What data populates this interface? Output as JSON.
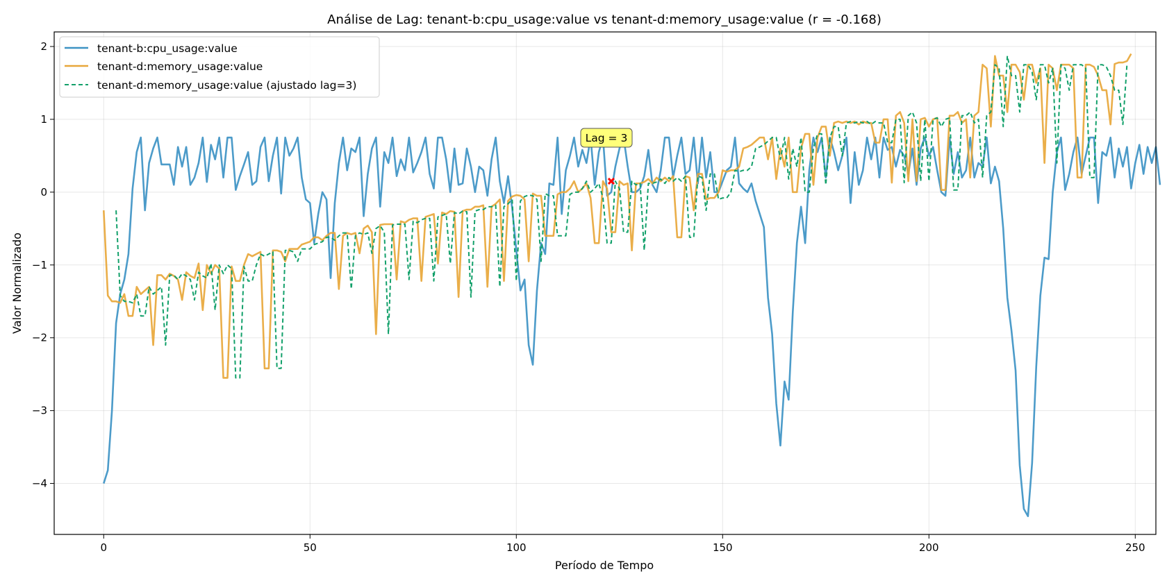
{
  "chart_data": {
    "type": "line",
    "title": "Análise de Lag: tenant-b:cpu_usage:value vs tenant-d:memory_usage:value (r = -0.168)",
    "xlabel": "Período de Tempo",
    "ylabel": "Valor Normalizado",
    "xlim": [
      -12,
      255
    ],
    "ylim": [
      -4.7,
      2.2
    ],
    "xticks": [
      0,
      50,
      100,
      150,
      200,
      250
    ],
    "yticks": [
      2,
      1,
      0,
      -1,
      -2,
      -3,
      -4
    ],
    "ytick_labels": [
      "2",
      "1",
      "0",
      "−1",
      "−2",
      "−3",
      "−4"
    ],
    "grid": true,
    "legend_position": "upper-left",
    "annotation": {
      "text": "Lag = 3",
      "x": 123,
      "y": 0.15
    },
    "colors": {
      "series_a": "#3d93c4",
      "series_b": "#e8a73a",
      "series_c": "#12a06a",
      "marker": "#ff0000",
      "annotation_bg": "#ffff7a"
    },
    "series": [
      {
        "name": "tenant-b:cpu_usage:value",
        "style": "solid",
        "x_start": 0,
        "values": [
          -4.0,
          -3.82,
          -3.0,
          -1.8,
          -1.4,
          -1.2,
          -0.85,
          0.05,
          0.55,
          0.75,
          -0.25,
          0.4,
          0.6,
          0.75,
          0.38,
          0.38,
          0.38,
          0.1,
          0.62,
          0.35,
          0.62,
          0.1,
          0.2,
          0.4,
          0.75,
          0.14,
          0.65,
          0.45,
          0.75,
          0.2,
          0.75,
          0.75,
          0.03,
          0.22,
          0.38,
          0.55,
          0.1,
          0.15,
          0.62,
          0.75,
          0.15,
          0.5,
          0.75,
          -0.02,
          0.75,
          0.5,
          0.6,
          0.75,
          0.2,
          -0.1,
          -0.15,
          -0.7,
          -0.3,
          0.0,
          -0.1,
          -1.18,
          -0.15,
          0.4,
          0.75,
          0.3,
          0.6,
          0.55,
          0.75,
          -0.33,
          0.25,
          0.6,
          0.75,
          -0.2,
          0.55,
          0.4,
          0.75,
          0.22,
          0.45,
          0.3,
          0.75,
          0.27,
          0.4,
          0.55,
          0.75,
          0.25,
          0.05,
          0.75,
          0.75,
          0.45,
          0.0,
          0.6,
          0.1,
          0.12,
          0.6,
          0.35,
          0.0,
          0.35,
          0.3,
          -0.05,
          0.45,
          0.75,
          0.15,
          -0.15,
          0.22,
          -0.22,
          -0.8,
          -1.35,
          -1.2,
          -2.1,
          -2.37,
          -1.35,
          -0.7,
          -0.85,
          0.12,
          0.1,
          0.75,
          -0.3,
          0.3,
          0.5,
          0.75,
          0.35,
          0.58,
          0.4,
          0.75,
          0.1,
          0.55,
          0.75,
          -0.05,
          0.0,
          0.35,
          0.6,
          0.75,
          0.35,
          0.0,
          0.0,
          0.05,
          0.22,
          0.58,
          0.1,
          0.0,
          0.3,
          0.75,
          0.75,
          0.2,
          0.5,
          0.75,
          0.25,
          0.3,
          0.75,
          0.12,
          0.75,
          0.2,
          0.55,
          0.0,
          0.0,
          0.15,
          0.3,
          0.35,
          0.75,
          0.12,
          0.05,
          0.0,
          0.12,
          -0.12,
          -0.3,
          -0.48,
          -1.45,
          -1.95,
          -2.9,
          -3.48,
          -2.6,
          -2.85,
          -1.65,
          -0.7,
          -0.2,
          -0.7,
          0.3,
          0.75,
          0.55,
          0.75,
          0.2,
          0.75,
          0.55,
          0.3,
          0.5,
          0.75,
          -0.15,
          0.55,
          0.1,
          0.3,
          0.75,
          0.45,
          0.75,
          0.2,
          0.75,
          0.58,
          0.62,
          0.35,
          0.58,
          0.5,
          0.25,
          0.6,
          0.1,
          0.6,
          0.75,
          0.5,
          0.62,
          0.3,
          0.0,
          -0.05,
          0.75,
          0.25,
          0.55,
          0.2,
          0.3,
          0.75,
          0.2,
          0.4,
          0.35,
          0.75,
          0.12,
          0.35,
          0.15,
          -0.5,
          -1.45,
          -1.9,
          -2.45,
          -3.75,
          -4.35,
          -4.45,
          -3.72,
          -2.4,
          -1.42,
          -0.9,
          -0.92,
          0.0,
          0.55,
          0.75,
          0.03,
          0.25,
          0.55,
          0.75,
          0.25,
          0.5,
          0.75,
          0.75,
          -0.15,
          0.55,
          0.5,
          0.75,
          0.2,
          0.6,
          0.35,
          0.62,
          0.05,
          0.4,
          0.65,
          0.25,
          0.62,
          0.4,
          0.62,
          0.1
        ]
      },
      {
        "name": "tenant-d:memory_usage:value",
        "style": "solid",
        "x_start": 0,
        "values": [
          -0.25,
          -1.42,
          -1.5,
          -1.5,
          -1.52,
          -1.4,
          -1.7,
          -1.7,
          -1.3,
          -1.4,
          -1.35,
          -1.3,
          -2.1,
          -1.14,
          -1.14,
          -1.2,
          -1.12,
          -1.15,
          -1.2,
          -1.48,
          -1.1,
          -1.15,
          -1.18,
          -0.98,
          -1.62,
          -1.0,
          -1.12,
          -1.0,
          -1.05,
          -2.55,
          -2.55,
          -1.02,
          -1.22,
          -1.22,
          -1.0,
          -0.85,
          -0.88,
          -0.85,
          -0.82,
          -2.42,
          -2.42,
          -0.8,
          -0.8,
          -0.82,
          -0.95,
          -0.78,
          -0.78,
          -0.78,
          -0.72,
          -0.7,
          -0.68,
          -0.62,
          -0.62,
          -0.66,
          -0.6,
          -0.56,
          -0.56,
          -1.33,
          -0.6,
          -0.56,
          -0.58,
          -0.56,
          -0.84,
          -0.5,
          -0.46,
          -0.55,
          -1.95,
          -0.45,
          -0.44,
          -0.44,
          -0.44,
          -1.2,
          -0.4,
          -0.42,
          -0.38,
          -0.36,
          -0.36,
          -1.22,
          -0.34,
          -0.32,
          -0.3,
          -0.98,
          -0.28,
          -0.3,
          -0.26,
          -0.27,
          -1.44,
          -0.26,
          -0.24,
          -0.24,
          -0.2,
          -0.2,
          -0.18,
          -1.3,
          -0.2,
          -0.16,
          -0.1,
          -1.22,
          -0.12,
          -0.06,
          -0.04,
          -0.05,
          -0.1,
          -0.95,
          -0.02,
          -0.05,
          -0.05,
          -0.6,
          -0.6,
          -0.6,
          -0.03,
          0.0,
          0.0,
          0.05,
          0.15,
          0.0,
          0.05,
          0.12,
          -0.08,
          -0.7,
          -0.7,
          0.15,
          0.05,
          -0.55,
          -0.55,
          0.15,
          0.1,
          0.12,
          -0.8,
          0.12,
          0.12,
          0.14,
          0.18,
          0.12,
          0.2,
          0.15,
          0.2,
          0.15,
          0.22,
          -0.62,
          -0.62,
          0.22,
          0.2,
          -0.25,
          0.25,
          0.25,
          -0.1,
          -0.08,
          -0.08,
          0.0,
          0.3,
          0.28,
          0.3,
          0.3,
          0.35,
          0.6,
          0.62,
          0.65,
          0.7,
          0.75,
          0.75,
          0.45,
          0.75,
          0.18,
          0.6,
          0.35,
          0.75,
          0.0,
          0.0,
          0.6,
          0.8,
          0.8,
          0.1,
          0.75,
          0.9,
          0.9,
          0.5,
          0.95,
          0.97,
          0.95,
          0.97,
          0.95,
          0.97,
          0.93,
          0.97,
          0.95,
          0.95,
          0.68,
          0.68,
          1.0,
          1.0,
          0.13,
          1.05,
          1.1,
          0.95,
          0.15,
          1.0,
          0.15,
          1.0,
          1.02,
          0.9,
          1.0,
          1.02,
          0.03,
          0.03,
          1.05,
          1.05,
          1.1,
          0.95,
          1.0,
          0.2,
          1.05,
          1.1,
          1.75,
          1.7,
          0.9,
          1.87,
          1.6,
          1.6,
          1.1,
          1.75,
          1.75,
          1.65,
          1.27,
          1.75,
          1.75,
          1.5,
          1.7,
          0.4,
          1.75,
          1.7,
          1.4,
          1.75,
          1.75,
          1.75,
          1.7,
          0.2,
          0.2,
          1.75,
          1.75,
          1.72,
          1.6,
          1.4,
          1.4,
          0.93,
          1.76,
          1.78,
          1.78,
          1.8,
          1.9
        ]
      },
      {
        "name": "tenant-d:memory_usage:value (ajustado lag=3)",
        "style": "dashed",
        "x_start": 3,
        "values": [
          -0.25,
          -1.42,
          -1.5,
          -1.5,
          -1.52,
          -1.4,
          -1.7,
          -1.7,
          -1.3,
          -1.4,
          -1.35,
          -1.3,
          -2.1,
          -1.14,
          -1.14,
          -1.2,
          -1.12,
          -1.15,
          -1.2,
          -1.48,
          -1.1,
          -1.15,
          -1.18,
          -0.98,
          -1.62,
          -1.0,
          -1.12,
          -1.0,
          -1.05,
          -2.55,
          -2.55,
          -1.02,
          -1.22,
          -1.22,
          -1.0,
          -0.85,
          -0.88,
          -0.85,
          -0.82,
          -2.42,
          -2.42,
          -0.8,
          -0.8,
          -0.82,
          -0.95,
          -0.78,
          -0.78,
          -0.78,
          -0.72,
          -0.7,
          -0.68,
          -0.62,
          -0.62,
          -0.66,
          -0.6,
          -0.56,
          -0.56,
          -1.33,
          -0.6,
          -0.56,
          -0.58,
          -0.56,
          -0.84,
          -0.5,
          -0.46,
          -0.55,
          -1.95,
          -0.45,
          -0.44,
          -0.44,
          -0.44,
          -1.2,
          -0.4,
          -0.42,
          -0.38,
          -0.36,
          -0.36,
          -1.22,
          -0.34,
          -0.32,
          -0.3,
          -0.98,
          -0.28,
          -0.3,
          -0.26,
          -0.27,
          -1.44,
          -0.26,
          -0.24,
          -0.24,
          -0.2,
          -0.2,
          -0.18,
          -1.3,
          -0.2,
          -0.16,
          -0.1,
          -1.22,
          -0.12,
          -0.06,
          -0.04,
          -0.05,
          -0.1,
          -0.95,
          -0.02,
          -0.05,
          -0.05,
          -0.6,
          -0.6,
          -0.6,
          -0.03,
          0.0,
          0.0,
          0.05,
          0.15,
          0.0,
          0.05,
          0.12,
          -0.08,
          -0.7,
          -0.7,
          0.15,
          0.05,
          -0.55,
          -0.55,
          0.15,
          0.1,
          0.12,
          -0.8,
          0.12,
          0.12,
          0.14,
          0.18,
          0.12,
          0.2,
          0.15,
          0.2,
          0.15,
          0.22,
          -0.62,
          -0.62,
          0.22,
          0.2,
          -0.25,
          0.25,
          0.25,
          -0.1,
          -0.08,
          -0.08,
          0.0,
          0.3,
          0.28,
          0.3,
          0.3,
          0.35,
          0.6,
          0.62,
          0.65,
          0.7,
          0.75,
          0.75,
          0.45,
          0.75,
          0.18,
          0.6,
          0.35,
          0.75,
          0.0,
          0.0,
          0.6,
          0.8,
          0.8,
          0.1,
          0.75,
          0.9,
          0.9,
          0.5,
          0.95,
          0.97,
          0.95,
          0.97,
          0.95,
          0.97,
          0.93,
          0.97,
          0.95,
          0.95,
          0.68,
          0.68,
          1.0,
          1.0,
          0.13,
          1.05,
          1.1,
          0.95,
          0.15,
          1.0,
          0.15,
          1.0,
          1.02,
          0.9,
          1.0,
          1.02,
          0.03,
          0.03,
          1.05,
          1.05,
          1.1,
          0.95,
          1.0,
          0.2,
          1.05,
          1.1,
          1.75,
          1.7,
          0.9,
          1.87,
          1.6,
          1.6,
          1.1,
          1.75,
          1.75,
          1.65,
          1.27,
          1.75,
          1.75,
          1.5,
          1.7,
          0.4,
          1.75,
          1.7,
          1.4,
          1.75,
          1.75,
          1.75,
          1.7,
          0.2,
          0.2,
          1.75,
          1.75,
          1.72,
          1.6,
          1.4,
          1.4,
          0.93,
          1.76
        ]
      }
    ]
  }
}
